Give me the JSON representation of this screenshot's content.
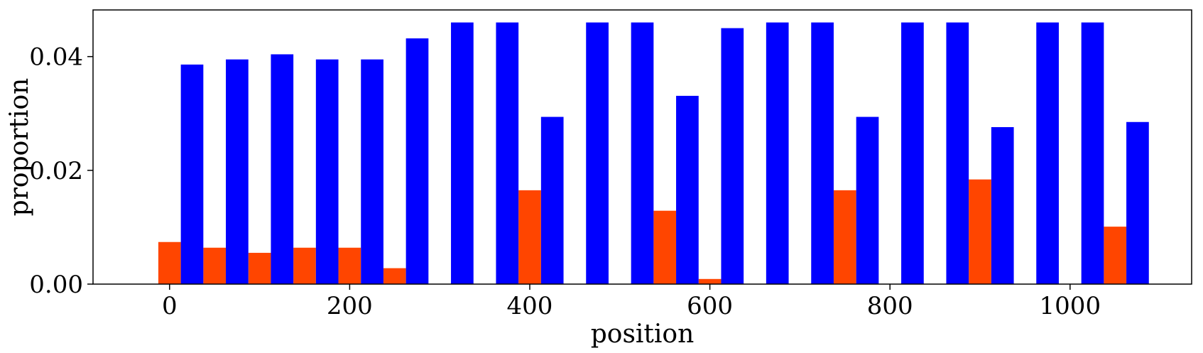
{
  "chart_data": {
    "type": "bar",
    "xlabel": "position",
    "ylabel": "proportion",
    "xlim": [
      -85,
      1135
    ],
    "ylim": [
      0,
      0.0482
    ],
    "xticks": [
      0,
      200,
      400,
      600,
      800,
      1000
    ],
    "xtick_labels": [
      "0",
      "200",
      "400",
      "600",
      "800",
      "1000"
    ],
    "yticks": [
      0,
      0.02,
      0.04
    ],
    "ytick_labels": [
      "0.00",
      "0.02",
      "0.04"
    ],
    "grid": false,
    "bar_width": 25,
    "x": [
      0,
      50,
      100,
      150,
      200,
      250,
      300,
      350,
      400,
      450,
      500,
      550,
      600,
      650,
      700,
      750,
      800,
      850,
      900,
      950,
      1000,
      1050
    ],
    "series": [
      {
        "color": "#ff4500",
        "offset": 0,
        "values": [
          0.0074,
          0.0064,
          0.0055,
          0.0064,
          0.0064,
          0.0028,
          0,
          0,
          0.0165,
          0,
          0,
          0.0129,
          0.0009,
          0,
          0,
          0.0165,
          0,
          0,
          0.0184,
          0,
          0,
          0.0101
        ]
      },
      {
        "color": "#0000ff",
        "offset": 1,
        "values": [
          0.0386,
          0.0395,
          0.0404,
          0.0395,
          0.0395,
          0.0432,
          0.046,
          0.046,
          0.0294,
          0.046,
          0.046,
          0.0331,
          0.045,
          0.046,
          0.046,
          0.0294,
          0.046,
          0.046,
          0.0276,
          0.046,
          0.046,
          0.0285
        ]
      }
    ]
  }
}
